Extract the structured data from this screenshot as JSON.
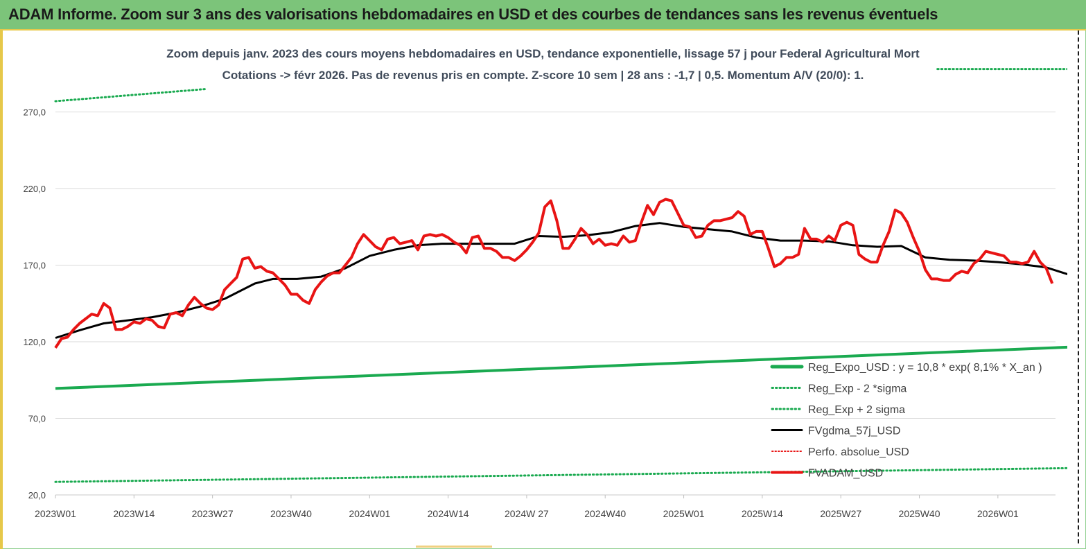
{
  "header": {
    "title": "ADAM Informe. Zoom sur 3 ans des valorisations hebdomadaires en USD et des courbes de tendances sans les revenus éventuels"
  },
  "colors": {
    "header_bg": "#7cc47a",
    "accent_yellow": "#e6c84a",
    "regression": "#1aaa50",
    "price": "#e81414",
    "moving_average": "#000000",
    "perf_absolute": "#e81414"
  },
  "chart_data": {
    "type": "line",
    "subtitle_line1": "Zoom depuis janv. 2023 des cours moyens hebdomadaires en USD, tendance exponentielle, lissage 57 j pour Federal Agricultural Mort",
    "subtitle_line2": "Cotations -> févr 2026. Pas de revenus pris en compte. Z-score 10 sem | 28 ans : -1,7 | 0,5. Momentum A/V (20/0): 1.",
    "xlabel": "",
    "ylabel": "",
    "ylim": [
      20,
      290
    ],
    "yticks": [
      "20,0",
      "70,0",
      "120,0",
      "170,0",
      "220,0",
      "270,0"
    ],
    "ytick_values": [
      20,
      70,
      120,
      170,
      220,
      270
    ],
    "xticks": [
      "2023W01",
      "2023W14",
      "2023W27",
      "2023W40",
      "2024W01",
      "2024W14",
      "2024W 27",
      "2024W40",
      "2025W01",
      "2025W14",
      "2025W27",
      "2025W40",
      "2026W01"
    ],
    "xtick_week_index": [
      0,
      13,
      26,
      39,
      52,
      65,
      78,
      91,
      104,
      117,
      130,
      143,
      156
    ],
    "x_range_weeks": [
      0,
      168
    ],
    "grid": "horizontal",
    "legend_position": "bottom-right",
    "legend": [
      "Reg_Expo_USD : y = 10,8 * exp( 8,1% *  X_an )",
      "Reg_Exp - 2 *sigma",
      "Reg_Exp + 2 sigma",
      "FVgdma_57j_USD",
      "Perfo. absolue_USD",
      "FVADAM_USD"
    ],
    "series": [
      {
        "name": "Reg_Expo_USD : y = 10,8 * exp( 8,1% *  X_an )",
        "style": "solid-thick",
        "color": "#1aaa50",
        "points": [
          [
            0,
            89.5
          ],
          [
            168,
            116.5
          ]
        ]
      },
      {
        "name": "Reg_Exp - 2 *sigma",
        "style": "dotted",
        "color": "#1aaa50",
        "points": [
          [
            0,
            28.5
          ],
          [
            168,
            37.5
          ]
        ]
      },
      {
        "name": "Reg_Exp + 2 sigma",
        "style": "dotted",
        "color": "#1aaa50",
        "visible_segments": [
          [
            [
              0,
              277
            ],
            [
              25,
              285
            ]
          ],
          [
            [
              146,
              298
            ],
            [
              168,
              298
            ]
          ]
        ]
      },
      {
        "name": "FVgdma_57j_USD",
        "style": "solid",
        "color": "#000000",
        "points": [
          [
            0,
            122.5
          ],
          [
            4,
            127.5
          ],
          [
            8,
            132
          ],
          [
            12,
            134
          ],
          [
            16,
            136
          ],
          [
            20,
            139
          ],
          [
            24,
            143
          ],
          [
            28,
            148
          ],
          [
            31,
            154
          ],
          [
            33,
            158
          ],
          [
            36,
            161
          ],
          [
            40,
            161
          ],
          [
            44,
            162.5
          ],
          [
            48,
            168
          ],
          [
            52,
            176
          ],
          [
            56,
            180
          ],
          [
            60,
            183
          ],
          [
            64,
            184
          ],
          [
            70,
            184
          ],
          [
            76,
            184
          ],
          [
            80,
            189
          ],
          [
            84,
            188.5
          ],
          [
            88,
            189.5
          ],
          [
            92,
            191.5
          ],
          [
            96,
            195.5
          ],
          [
            100,
            197.5
          ],
          [
            104,
            195
          ],
          [
            108,
            193.5
          ],
          [
            112,
            192
          ],
          [
            116,
            188
          ],
          [
            120,
            186
          ],
          [
            124,
            186
          ],
          [
            128,
            185.5
          ],
          [
            132,
            183
          ],
          [
            136,
            182
          ],
          [
            140,
            182.5
          ],
          [
            144,
            175
          ],
          [
            148,
            173.5
          ],
          [
            152,
            173
          ],
          [
            156,
            172
          ],
          [
            160,
            170.5
          ],
          [
            164,
            168.5
          ],
          [
            168,
            163.5
          ]
        ]
      },
      {
        "name": "FVADAM_USD",
        "style": "solid-thick",
        "color": "#e81414",
        "points": [
          [
            0,
            116
          ],
          [
            1,
            122
          ],
          [
            2,
            123
          ],
          [
            3,
            128
          ],
          [
            4,
            132
          ],
          [
            5,
            135
          ],
          [
            6,
            138
          ],
          [
            7,
            137
          ],
          [
            8,
            145
          ],
          [
            9,
            142
          ],
          [
            10,
            128
          ],
          [
            11,
            128
          ],
          [
            12,
            130
          ],
          [
            13,
            133
          ],
          [
            14,
            132
          ],
          [
            15,
            135
          ],
          [
            16,
            134
          ],
          [
            17,
            130
          ],
          [
            18,
            129
          ],
          [
            19,
            138
          ],
          [
            20,
            139
          ],
          [
            21,
            137
          ],
          [
            22,
            144
          ],
          [
            23,
            149
          ],
          [
            24,
            145
          ],
          [
            25,
            142
          ],
          [
            26,
            141
          ],
          [
            27,
            144
          ],
          [
            28,
            154
          ],
          [
            29,
            158
          ],
          [
            30,
            162
          ],
          [
            31,
            174
          ],
          [
            32,
            175
          ],
          [
            33,
            168
          ],
          [
            34,
            169
          ],
          [
            35,
            166
          ],
          [
            36,
            165
          ],
          [
            37,
            161
          ],
          [
            38,
            157
          ],
          [
            39,
            151
          ],
          [
            40,
            151
          ],
          [
            41,
            147
          ],
          [
            42,
            145
          ],
          [
            43,
            154
          ],
          [
            44,
            159
          ],
          [
            45,
            163
          ],
          [
            46,
            165
          ],
          [
            47,
            165
          ],
          [
            48,
            170
          ],
          [
            49,
            175
          ],
          [
            50,
            184
          ],
          [
            51,
            190
          ],
          [
            52,
            186
          ],
          [
            53,
            182
          ],
          [
            54,
            180
          ],
          [
            55,
            187
          ],
          [
            56,
            188
          ],
          [
            57,
            184
          ],
          [
            58,
            185
          ],
          [
            59,
            186
          ],
          [
            60,
            180
          ],
          [
            61,
            189
          ],
          [
            62,
            190
          ],
          [
            63,
            189
          ],
          [
            64,
            190
          ],
          [
            65,
            188
          ],
          [
            66,
            185
          ],
          [
            67,
            183
          ],
          [
            68,
            178
          ],
          [
            69,
            188
          ],
          [
            70,
            189
          ],
          [
            71,
            181
          ],
          [
            72,
            181
          ],
          [
            73,
            179
          ],
          [
            74,
            175
          ],
          [
            75,
            175
          ],
          [
            76,
            173
          ],
          [
            77,
            176
          ],
          [
            78,
            180
          ],
          [
            79,
            185
          ],
          [
            80,
            191
          ],
          [
            81,
            208
          ],
          [
            82,
            212
          ],
          [
            83,
            199
          ],
          [
            84,
            181
          ],
          [
            85,
            181
          ],
          [
            86,
            187
          ],
          [
            87,
            194
          ],
          [
            88,
            190
          ],
          [
            89,
            184
          ],
          [
            90,
            187
          ],
          [
            91,
            183
          ],
          [
            92,
            184
          ],
          [
            93,
            183
          ],
          [
            94,
            189
          ],
          [
            95,
            185
          ],
          [
            96,
            186
          ],
          [
            97,
            198
          ],
          [
            98,
            209
          ],
          [
            99,
            203
          ],
          [
            100,
            211
          ],
          [
            101,
            213
          ],
          [
            102,
            212
          ],
          [
            103,
            204
          ],
          [
            104,
            196
          ],
          [
            105,
            195
          ],
          [
            106,
            188
          ],
          [
            107,
            189
          ],
          [
            108,
            196
          ],
          [
            109,
            199
          ],
          [
            110,
            199
          ],
          [
            111,
            200
          ],
          [
            112,
            201
          ],
          [
            113,
            205
          ],
          [
            114,
            202
          ],
          [
            115,
            190
          ],
          [
            116,
            192
          ],
          [
            117,
            192
          ],
          [
            118,
            181
          ],
          [
            119,
            169
          ],
          [
            120,
            171
          ],
          [
            121,
            175
          ],
          [
            122,
            175
          ],
          [
            123,
            177
          ],
          [
            124,
            194
          ],
          [
            125,
            187
          ],
          [
            126,
            187
          ],
          [
            127,
            185
          ],
          [
            128,
            189
          ],
          [
            129,
            186
          ],
          [
            130,
            196
          ],
          [
            131,
            198
          ],
          [
            132,
            196
          ],
          [
            133,
            177
          ],
          [
            134,
            174
          ],
          [
            135,
            172
          ],
          [
            136,
            172
          ],
          [
            137,
            183
          ],
          [
            138,
            192
          ],
          [
            139,
            206
          ],
          [
            140,
            204
          ],
          [
            141,
            198
          ],
          [
            142,
            188
          ],
          [
            143,
            179
          ],
          [
            144,
            167
          ],
          [
            145,
            161
          ],
          [
            146,
            161
          ],
          [
            147,
            160
          ],
          [
            148,
            160
          ],
          [
            149,
            164
          ],
          [
            150,
            166
          ],
          [
            151,
            165
          ],
          [
            152,
            171
          ],
          [
            153,
            174
          ],
          [
            154,
            179
          ],
          [
            155,
            178
          ],
          [
            156,
            177
          ],
          [
            157,
            176
          ],
          [
            158,
            172
          ],
          [
            159,
            172
          ],
          [
            160,
            171
          ],
          [
            161,
            172
          ],
          [
            162,
            179
          ],
          [
            163,
            172
          ],
          [
            164,
            168
          ],
          [
            165,
            158
          ]
        ]
      }
    ]
  }
}
